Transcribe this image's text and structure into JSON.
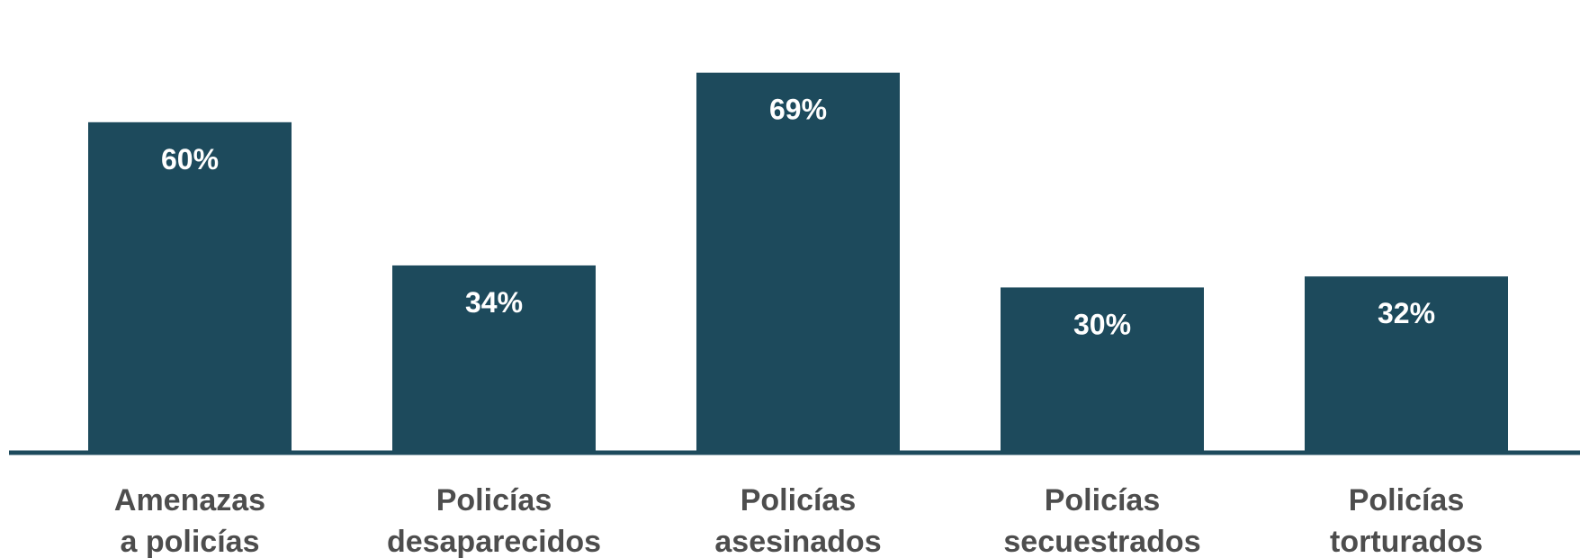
{
  "chart_data": {
    "type": "bar",
    "categories": [
      [
        "Amenazas",
        "a policías"
      ],
      [
        "Policías",
        "desaparecidos"
      ],
      [
        "Policías",
        "asesinados"
      ],
      [
        "Policías",
        "secuestrados"
      ],
      [
        "Policías",
        "torturados"
      ]
    ],
    "values": [
      60,
      34,
      69,
      30,
      32
    ],
    "value_labels": [
      "60%",
      "34%",
      "69%",
      "30%",
      "32%"
    ],
    "unit": "%",
    "ylim": [
      0,
      70
    ],
    "grid": false,
    "legend": "none",
    "title": "",
    "xlabel": "",
    "ylabel": ""
  },
  "colors": {
    "bar": "#1d4a5c",
    "axis": "#1d4a5c",
    "value_text": "#ffffff",
    "category_text": "#4d4d4d"
  }
}
